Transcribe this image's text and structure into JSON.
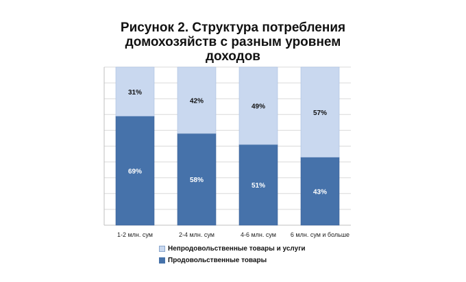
{
  "chart_data": {
    "type": "bar",
    "stacked": true,
    "title_lines": [
      "Рисунок 2. Структура потребления",
      "домохозяйств с разным уровнем",
      "доходов"
    ],
    "categories": [
      "1-2 млн. сум",
      "2-4 млн. сум",
      "4-6 млн. сум",
      "6 млн. сум и больше"
    ],
    "series": [
      {
        "name": "Продовольственные товары",
        "values": [
          69,
          58,
          51,
          43
        ],
        "labels": [
          "69%",
          "58%",
          "51%",
          "43%"
        ],
        "color": "#4672aa",
        "label_color": "#ffffff"
      },
      {
        "name": "Непродовольственные товары и услуги",
        "values": [
          31,
          42,
          49,
          57
        ],
        "labels": [
          "31%",
          "42%",
          "49%",
          "57%"
        ],
        "color": "#c9d8ef",
        "label_color": "#111111"
      }
    ],
    "ylim": [
      0,
      100
    ],
    "grid": true,
    "legend_position": "bottom"
  }
}
